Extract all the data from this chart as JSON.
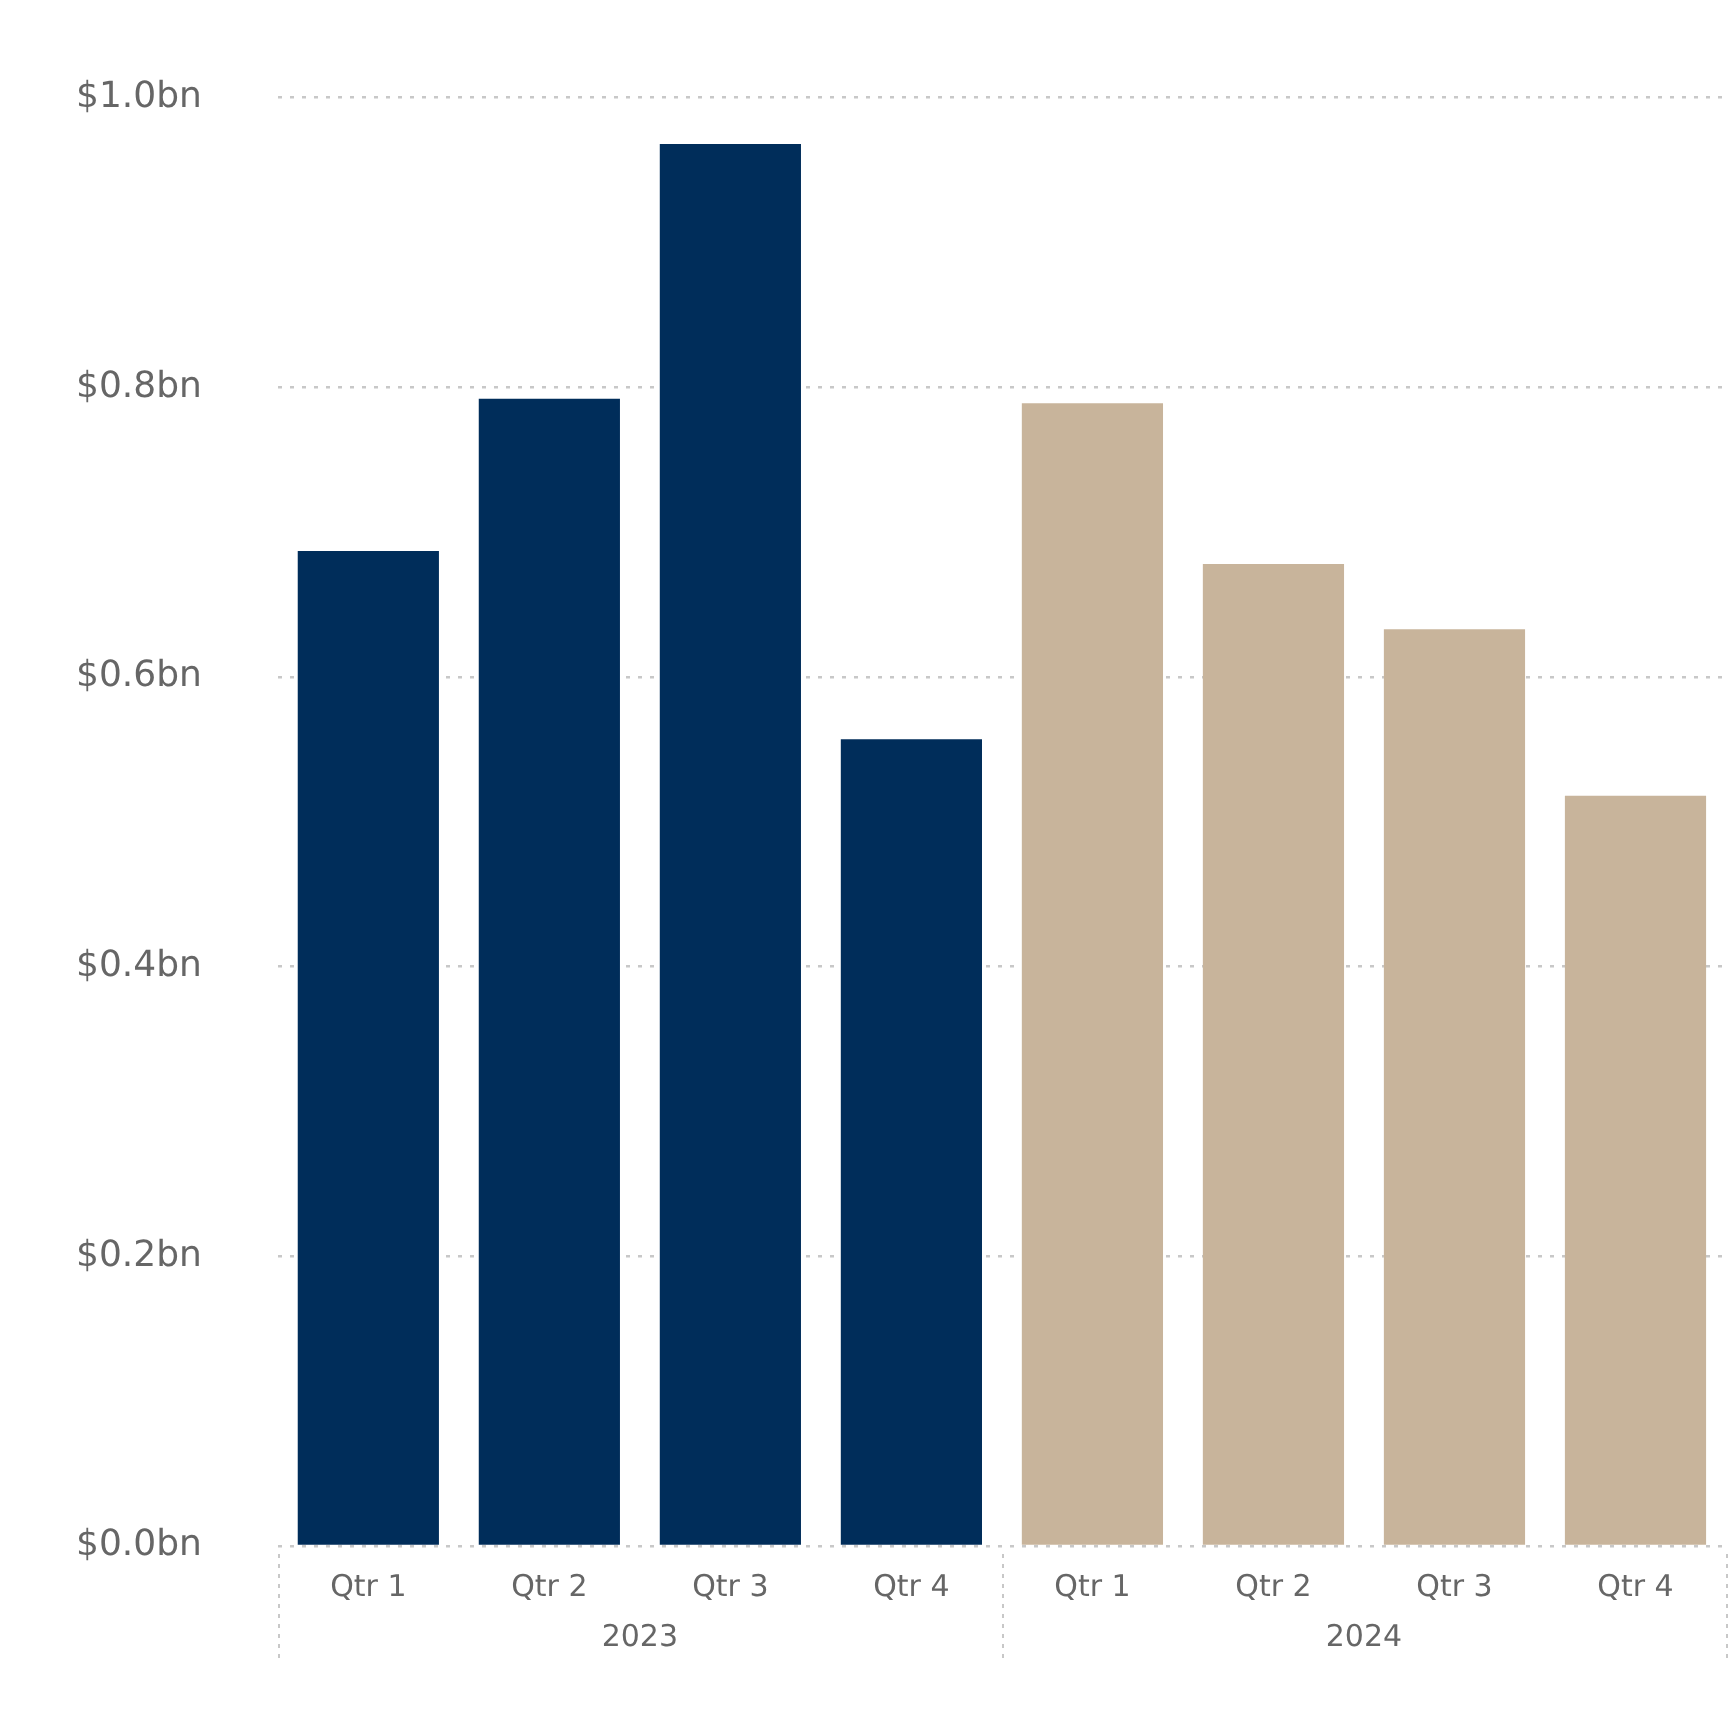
{
  "chart_data": {
    "type": "bar",
    "categories": [
      "Qtr 1",
      "Qtr 2",
      "Qtr 3",
      "Qtr 4",
      "Qtr 1",
      "Qtr 2",
      "Qtr 3",
      "Qtr 4"
    ],
    "series": [
      {
        "name": "2023",
        "color": "#002d5a",
        "values": [
          0.687,
          0.792,
          0.968,
          0.557,
          null,
          null,
          null,
          null
        ]
      },
      {
        "name": "2024",
        "color": "#c8b49b",
        "values": [
          null,
          null,
          null,
          null,
          0.789,
          0.678,
          0.633,
          0.518
        ]
      }
    ],
    "ylim": [
      0,
      1
    ],
    "yticks": [
      {
        "value": 0,
        "label": "$0.0bn"
      },
      {
        "value": 0.2,
        "label": "$0.2bn"
      },
      {
        "value": 0.4,
        "label": "$0.4bn"
      },
      {
        "value": 0.6,
        "label": "$0.6bn"
      },
      {
        "value": 0.8,
        "label": "$0.8bn"
      },
      {
        "value": 1,
        "label": "$1.0bn"
      }
    ],
    "grid": "y",
    "legend": false
  }
}
